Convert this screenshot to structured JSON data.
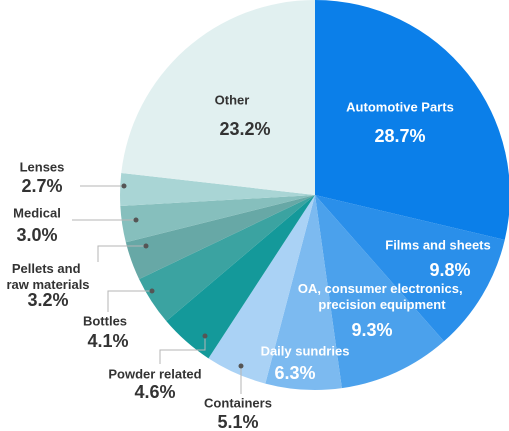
{
  "chart_data": {
    "type": "pie",
    "categories": [
      "Automotive Parts",
      "Films and sheets",
      "OA, consumer electronics, precision equipment",
      "Daily sundries",
      "Containers",
      "Powder related",
      "Bottles",
      "Pellets and raw materials",
      "Medical",
      "Lenses",
      "Other"
    ],
    "values": [
      28.7,
      9.8,
      9.3,
      6.3,
      5.1,
      4.6,
      4.1,
      3.2,
      3.0,
      2.7,
      23.2
    ],
    "value_labels": [
      "28.7%",
      "9.8%",
      "9.3%",
      "6.3%",
      "5.1%",
      "4.6%",
      "4.1%",
      "3.2%",
      "3.0%",
      "2.7%",
      "23.2%"
    ],
    "colors": [
      "#0b7fe9",
      "#2a8fea",
      "#4ba1ec",
      "#7cbaf0",
      "#aad2f5",
      "#14999a",
      "#3ba3a1",
      "#67a8a6",
      "#86bfbd",
      "#a9d5d5",
      "#e1f0f0"
    ]
  }
}
